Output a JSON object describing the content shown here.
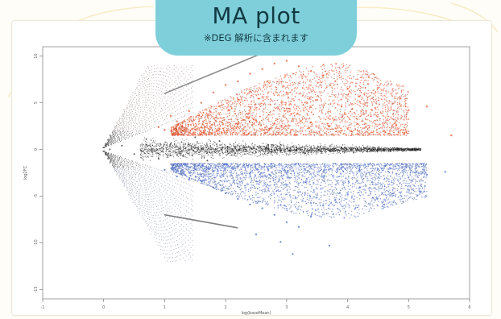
{
  "header": {
    "title": "MA plot",
    "subtitle": "※DEG 解析に含まれます"
  },
  "colors": {
    "background": "#fffdf8",
    "badge": "#7fcfdb",
    "up": "#e8542c",
    "down": "#5271c9",
    "ns": "#222222"
  },
  "chart_data": {
    "type": "scatter",
    "title": "",
    "xlabel": "log(baseMean)",
    "ylabel": "log2FC",
    "xlim": [
      -1,
      6
    ],
    "ylim": [
      -16,
      11
    ],
    "x_ticks": [
      -1,
      0,
      1,
      2,
      3,
      4,
      5,
      6
    ],
    "y_ticks": [
      -15,
      -10,
      -5,
      0,
      5,
      10
    ],
    "y_tick_labels": [
      "-15",
      "-10",
      "-5",
      "0",
      "5",
      "10"
    ],
    "grid": false,
    "legend": "none",
    "series": [
      {
        "values_description_hidden": "",
        "points_up": [
          [
            1.0,
            2.1
          ],
          [
            1.2,
            3.0
          ],
          [
            1.4,
            4.1
          ],
          [
            1.6,
            5.0
          ],
          [
            1.8,
            6.1
          ],
          [
            2.0,
            6.9
          ],
          [
            2.2,
            7.3
          ],
          [
            2.4,
            8.1
          ],
          [
            2.6,
            8.6
          ],
          [
            2.8,
            9.2
          ],
          [
            3.0,
            9.5
          ],
          [
            3.2,
            8.9
          ],
          [
            3.4,
            8.4
          ],
          [
            3.6,
            7.9
          ],
          [
            3.8,
            7.3
          ],
          [
            4.0,
            6.5
          ],
          [
            4.2,
            5.1
          ],
          [
            4.4,
            4.2
          ],
          [
            1.3,
            2.0
          ],
          [
            1.6,
            2.4
          ],
          [
            1.9,
            2.2
          ],
          [
            2.2,
            2.7
          ],
          [
            2.5,
            3.1
          ],
          [
            2.8,
            2.8
          ],
          [
            3.1,
            3.3
          ],
          [
            3.4,
            2.9
          ],
          [
            3.7,
            2.5
          ],
          [
            4.0,
            2.2
          ],
          [
            4.3,
            2.4
          ],
          [
            4.6,
            2.0
          ],
          [
            2.1,
            4.4
          ],
          [
            2.6,
            5.6
          ],
          [
            3.0,
            6.1
          ],
          [
            3.5,
            5.3
          ],
          [
            3.9,
            4.6
          ],
          [
            2.4,
            6.2
          ],
          [
            5.3,
            4.6
          ],
          [
            5.0,
            4.2
          ],
          [
            4.8,
            2.6
          ],
          [
            5.7,
            1.5
          ],
          [
            0.9,
            2.4
          ],
          [
            1.1,
            3.6
          ]
        ],
        "points_down": [
          [
            1.0,
            -2.2
          ],
          [
            1.2,
            -2.9
          ],
          [
            1.4,
            -3.2
          ],
          [
            1.6,
            -3.4
          ],
          [
            1.8,
            -4.1
          ],
          [
            2.0,
            -4.7
          ],
          [
            2.2,
            -5.3
          ],
          [
            2.4,
            -5.9
          ],
          [
            2.6,
            -6.3
          ],
          [
            2.8,
            -7.0
          ],
          [
            3.0,
            -7.8
          ],
          [
            3.2,
            -8.3
          ],
          [
            3.4,
            -7.2
          ],
          [
            3.6,
            -6.0
          ],
          [
            3.8,
            -5.4
          ],
          [
            4.0,
            -4.8
          ],
          [
            4.2,
            -4.1
          ],
          [
            4.4,
            -3.5
          ],
          [
            1.5,
            -2.1
          ],
          [
            1.8,
            -2.3
          ],
          [
            2.1,
            -2.0
          ],
          [
            2.4,
            -2.6
          ],
          [
            2.7,
            -2.2
          ],
          [
            3.0,
            -2.5
          ],
          [
            3.3,
            -2.1
          ],
          [
            3.6,
            -2.4
          ],
          [
            3.9,
            -2.0
          ],
          [
            4.2,
            -2.3
          ],
          [
            4.5,
            -2.1
          ],
          [
            4.8,
            -2.6
          ],
          [
            5.0,
            -3.0
          ],
          [
            5.3,
            -2.7
          ],
          [
            5.6,
            -2.4
          ],
          [
            2.5,
            -9.1
          ],
          [
            2.9,
            -9.9
          ],
          [
            3.1,
            -11.2
          ],
          [
            5.2,
            -4.5
          ],
          [
            4.6,
            -5.9
          ],
          [
            3.7,
            -10.3
          ]
        ],
        "points_ns": [
          [
            0.1,
            0.0
          ],
          [
            0.3,
            0.4
          ],
          [
            0.5,
            -0.5
          ],
          [
            0.7,
            1.1
          ],
          [
            0.9,
            -1.0
          ],
          [
            1.1,
            0.6
          ],
          [
            1.3,
            -0.7
          ],
          [
            1.5,
            1.3
          ],
          [
            1.7,
            -1.2
          ],
          [
            1.9,
            0.9
          ],
          [
            2.1,
            -0.6
          ],
          [
            2.3,
            0.2
          ],
          [
            2.5,
            -0.3
          ],
          [
            2.7,
            0.5
          ],
          [
            2.9,
            -0.2
          ],
          [
            3.1,
            0.3
          ],
          [
            3.3,
            -0.4
          ],
          [
            3.5,
            0.1
          ],
          [
            3.7,
            -0.1
          ],
          [
            3.9,
            0.2
          ],
          [
            4.1,
            -0.3
          ],
          [
            4.3,
            0.1
          ],
          [
            4.5,
            0.0
          ],
          [
            4.7,
            -0.2
          ]
        ]
      }
    ]
  }
}
